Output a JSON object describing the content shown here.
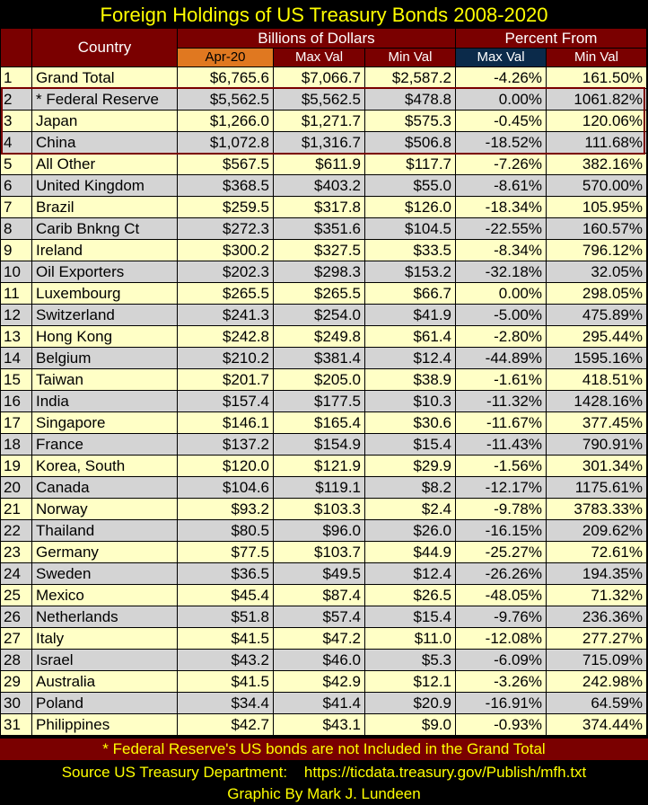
{
  "chart_data": {
    "type": "table",
    "title": "Foreign Holdings of US Treasury Bonds 2008-2020",
    "header": {
      "country": "Country",
      "group1": "Billions of Dollars",
      "group2": "Percent From",
      "sub": [
        "Apr-20",
        "Max Val",
        "Min Val",
        "Max Val",
        "Min Val"
      ]
    },
    "rows": [
      [
        "1",
        "Grand Total",
        "$6,765.6",
        "$7,066.7",
        "$2,587.2",
        "-4.26%",
        "161.50%"
      ],
      [
        "2",
        "* Federal Reserve",
        "$5,562.5",
        "$5,562.5",
        "$478.8",
        "0.00%",
        "1061.82%"
      ],
      [
        "3",
        "Japan",
        "$1,266.0",
        "$1,271.7",
        "$575.3",
        "-0.45%",
        "120.06%"
      ],
      [
        "4",
        "China",
        "$1,072.8",
        "$1,316.7",
        "$506.8",
        "-18.52%",
        "111.68%"
      ],
      [
        "5",
        "All Other",
        "$567.5",
        "$611.9",
        "$117.7",
        "-7.26%",
        "382.16%"
      ],
      [
        "6",
        "United Kingdom",
        "$368.5",
        "$403.2",
        "$55.0",
        "-8.61%",
        "570.00%"
      ],
      [
        "7",
        "Brazil",
        "$259.5",
        "$317.8",
        "$126.0",
        "-18.34%",
        "105.95%"
      ],
      [
        "8",
        "Carib Bnkng Ct",
        "$272.3",
        "$351.6",
        "$104.5",
        "-22.55%",
        "160.57%"
      ],
      [
        "9",
        "Ireland",
        "$300.2",
        "$327.5",
        "$33.5",
        "-8.34%",
        "796.12%"
      ],
      [
        "10",
        "Oil Exporters",
        "$202.3",
        "$298.3",
        "$153.2",
        "-32.18%",
        "32.05%"
      ],
      [
        "11",
        "Luxembourg",
        "$265.5",
        "$265.5",
        "$66.7",
        "0.00%",
        "298.05%"
      ],
      [
        "12",
        "Switzerland",
        "$241.3",
        "$254.0",
        "$41.9",
        "-5.00%",
        "475.89%"
      ],
      [
        "13",
        "Hong Kong",
        "$242.8",
        "$249.8",
        "$61.4",
        "-2.80%",
        "295.44%"
      ],
      [
        "14",
        "Belgium",
        "$210.2",
        "$381.4",
        "$12.4",
        "-44.89%",
        "1595.16%"
      ],
      [
        "15",
        "Taiwan",
        "$201.7",
        "$205.0",
        "$38.9",
        "-1.61%",
        "418.51%"
      ],
      [
        "16",
        "India",
        "$157.4",
        "$177.5",
        "$10.3",
        "-11.32%",
        "1428.16%"
      ],
      [
        "17",
        "Singapore",
        "$146.1",
        "$165.4",
        "$30.6",
        "-11.67%",
        "377.45%"
      ],
      [
        "18",
        "France",
        "$137.2",
        "$154.9",
        "$15.4",
        "-11.43%",
        "790.91%"
      ],
      [
        "19",
        "Korea, South",
        "$120.0",
        "$121.9",
        "$29.9",
        "-1.56%",
        "301.34%"
      ],
      [
        "20",
        "Canada",
        "$104.6",
        "$119.1",
        "$8.2",
        "-12.17%",
        "1175.61%"
      ],
      [
        "21",
        "Norway",
        "$93.2",
        "$103.3",
        "$2.4",
        "-9.78%",
        "3783.33%"
      ],
      [
        "22",
        "Thailand",
        "$80.5",
        "$96.0",
        "$26.0",
        "-16.15%",
        "209.62%"
      ],
      [
        "23",
        "Germany",
        "$77.5",
        "$103.7",
        "$44.9",
        "-25.27%",
        "72.61%"
      ],
      [
        "24",
        "Sweden",
        "$36.5",
        "$49.5",
        "$12.4",
        "-26.26%",
        "194.35%"
      ],
      [
        "25",
        "Mexico",
        "$45.4",
        "$87.4",
        "$26.5",
        "-48.05%",
        "71.32%"
      ],
      [
        "26",
        "Netherlands",
        "$51.8",
        "$57.4",
        "$15.4",
        "-9.76%",
        "236.36%"
      ],
      [
        "27",
        "Italy",
        "$41.5",
        "$47.2",
        "$11.0",
        "-12.08%",
        "277.27%"
      ],
      [
        "28",
        "Israel",
        "$43.2",
        "$46.0",
        "$5.3",
        "-6.09%",
        "715.09%"
      ],
      [
        "29",
        "Australia",
        "$41.5",
        "$42.9",
        "$12.1",
        "-3.26%",
        "242.98%"
      ],
      [
        "30",
        "Poland",
        "$34.4",
        "$41.4",
        "$20.9",
        "-16.91%",
        "64.59%"
      ],
      [
        "31",
        "Philippines",
        "$42.7",
        "$43.1",
        "$9.0",
        "-0.93%",
        "374.44%"
      ]
    ],
    "footnote": "* Federal Reserve's US bonds are not Included in the Grand Total",
    "source": "Source US Treasury Department:    https://ticdata.treasury.gov/Publish/mfh.txt",
    "byline": "Graphic By Mark J. Lundeen"
  },
  "colors": {
    "title_text": "#ffff00",
    "header_bg": "#7a0000",
    "apr_bg": "#e07820",
    "navy_bg": "#0b2a4a",
    "row_odd": "#ffffc6",
    "row_even": "#d4d4d4"
  }
}
